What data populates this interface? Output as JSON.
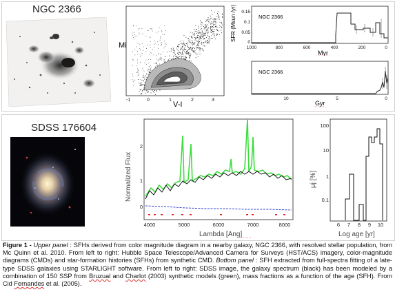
{
  "top": {
    "galaxy_title": "NGC 2366",
    "cmd": {
      "ylabel": "Mi",
      "xlabel": "V-I",
      "xticks": [
        "-1",
        "0",
        "1",
        "2",
        "3"
      ]
    },
    "sfh_recent": {
      "inner_label": "NGC 2366",
      "ylabel": "SFR (Msun /yr)",
      "xlabel": "Myr",
      "yticks": [
        "0.15",
        "0.1",
        "0.05",
        "0"
      ],
      "xticks": [
        "1000",
        "800",
        "600",
        "400",
        "200",
        "0"
      ]
    },
    "sfh_old": {
      "inner_label": "NGC 2366",
      "xlabel": "Gyr",
      "xticks": [
        "10",
        "5",
        "0"
      ]
    }
  },
  "bottom": {
    "galaxy_title": "SDSS 176604",
    "spectrum": {
      "ylabel": "Normalized Flux",
      "xlabel": "Lambda [Ang]",
      "yticks": [
        "2",
        "1",
        "0"
      ],
      "xticks": [
        "4000",
        "5000",
        "6000",
        "7000",
        "8000"
      ]
    },
    "sfh_hist": {
      "ylabel": "μj [%]",
      "xlabel": "Log age [yr]",
      "yticks": [
        "100",
        "10",
        "1",
        "0.1"
      ],
      "xticks": [
        "6",
        "7",
        "8",
        "9",
        "10"
      ]
    }
  },
  "caption": {
    "label": "Figure 1 - ",
    "upper_tag": "Upper panel",
    "text1": " : SFHs derived from color magnitude diagram in a nearby galaxy, NGC 2366, with resolved stellar population, from Mc Quinn et al. 2010. From left to right: Hubble Space Telescope/Advanced Camera for Surveys (HST/ACS) imagery, color-magnitude diagrams (CMDs) and star-formation histories (SFHs) from synthetic CMD. ",
    "bottom_tag": "Bottom panel",
    "text2": " : SFH extracted from full-spectra fitting of a late-type SDSS galaxies using STARLIGHT software. From left to right: SDSS image, the galaxy spectrum (black) has been modeled by a combination of 150 SSP from ",
    "bruzual": "Bruzual",
    "text3": " and ",
    "charlot": "Charlot",
    "text4": " (2003) synthetic models (green), mass fractions as a function of the age (SFH). From Cid ",
    "fernandes": "Fernandes",
    "text5": " et al. (2005)."
  }
}
